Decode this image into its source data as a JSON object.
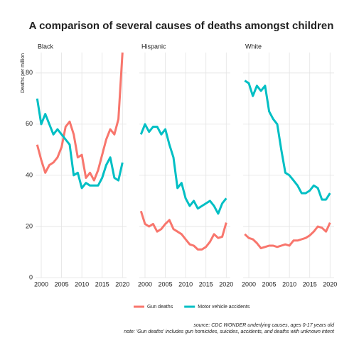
{
  "chart_data": {
    "type": "line",
    "title": "A comparison of several causes of deaths amongst children",
    "y_label": "Deaths per million",
    "facets": [
      "Black",
      "Hispanic",
      "White"
    ],
    "x": [
      1999,
      2000,
      2001,
      2002,
      2003,
      2004,
      2005,
      2006,
      2007,
      2008,
      2009,
      2010,
      2011,
      2012,
      2013,
      2014,
      2015,
      2016,
      2017,
      2018,
      2019,
      2020
    ],
    "xlim": [
      1998.6,
      2021
    ],
    "xticks": [
      2000,
      2005,
      2010,
      2015,
      2020
    ],
    "ylim": [
      0,
      88
    ],
    "yticks": [
      0,
      20,
      40,
      60,
      80
    ],
    "grid": true,
    "legend": "bottom",
    "series": [
      {
        "name": "Gun deaths",
        "color": "#F8766D",
        "values": [
          [
            52,
            46,
            41,
            44,
            45,
            47,
            51,
            59,
            61,
            56,
            47,
            48,
            39,
            41,
            38,
            42,
            48,
            54,
            58,
            56,
            62,
            88
          ],
          [
            26,
            21,
            20,
            21,
            18,
            19,
            21,
            22.5,
            19,
            18,
            17,
            15,
            13,
            12.5,
            11,
            11,
            12,
            14,
            17,
            15.5,
            16,
            21.5
          ],
          [
            17,
            15.5,
            15,
            13.5,
            11.5,
            12,
            12.5,
            12.5,
            12,
            12.5,
            13,
            12.5,
            14.5,
            14.5,
            15,
            15.5,
            16.5,
            18,
            20,
            19.5,
            18,
            21.5
          ]
        ]
      },
      {
        "name": "Motor vehicle accidents",
        "color": "#00BFC4",
        "values": [
          [
            70,
            60,
            64,
            60,
            56,
            58,
            56,
            54,
            52,
            40,
            41,
            35,
            37,
            36,
            36,
            36,
            39,
            44,
            47,
            39,
            38,
            45
          ],
          [
            56,
            60,
            57,
            59,
            59,
            56,
            58,
            52,
            47,
            35,
            37,
            31,
            28,
            30,
            27,
            28,
            29,
            30,
            28,
            25,
            29,
            31
          ],
          [
            77,
            76,
            71,
            75,
            73,
            75,
            65,
            62,
            60,
            50,
            41,
            40,
            38,
            36,
            33,
            33,
            34,
            36,
            35,
            30.5,
            30.5,
            33
          ]
        ]
      }
    ],
    "caption": [
      "source: CDC WONDER underlying causes, ages 0-17 years old",
      "note: 'Gun deaths' includes gun homicides, suicides, accidents, and deaths with unknown intent"
    ]
  }
}
